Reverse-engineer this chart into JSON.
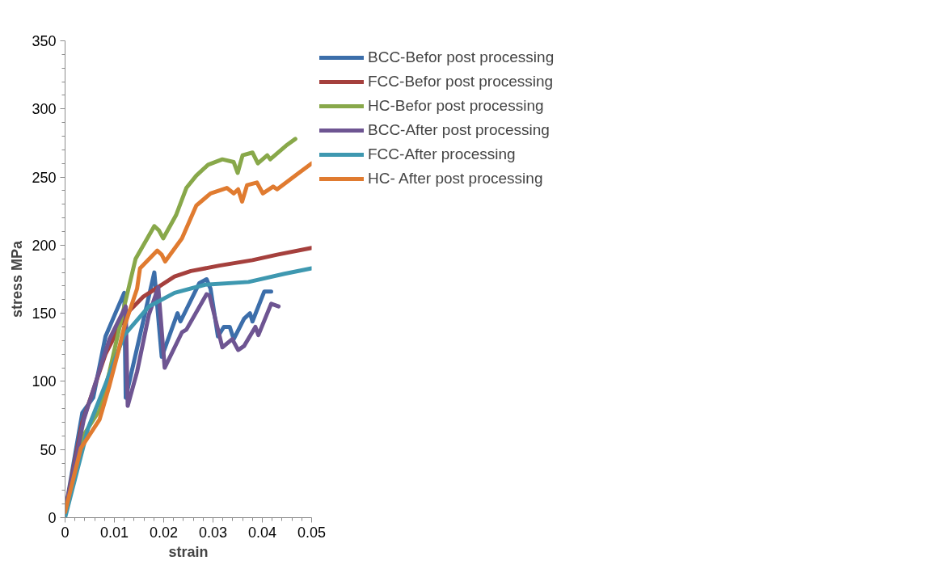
{
  "chart_data": {
    "type": "line",
    "xlabel": "strain",
    "ylabel": "stress MPa",
    "xlim": [
      0,
      0.05
    ],
    "xticks": [
      0,
      0.01,
      0.02,
      0.03,
      0.04,
      0.05
    ],
    "ylim": [
      0,
      350
    ],
    "yticks": [
      0,
      50,
      100,
      150,
      200,
      250,
      300,
      350
    ],
    "grid": false,
    "legend": "right",
    "marker": "none",
    "line_style": "solid",
    "series": [
      {
        "name": "BCC-Befor post processing",
        "color": "#3c6eaa",
        "x": [
          0,
          0.0035,
          0.0057,
          0.0082,
          0.0102,
          0.012,
          0.0123,
          0.0181,
          0.0196,
          0.0228,
          0.0234,
          0.0272,
          0.0287,
          0.0295,
          0.031,
          0.0322,
          0.0334,
          0.0342,
          0.0363,
          0.0375,
          0.038,
          0.0404,
          0.0418
        ],
        "values": [
          4,
          77,
          88,
          133,
          150,
          165,
          88,
          180,
          118,
          150,
          144,
          172,
          175,
          168,
          133,
          140,
          140,
          131,
          146,
          150,
          144,
          166,
          166
        ]
      },
      {
        "name": "FCC-Befor post processing",
        "color": "#a5403d",
        "x": [
          0,
          0.0035,
          0.0082,
          0.0123,
          0.0158,
          0.0222,
          0.0255,
          0.0313,
          0.038,
          0.043,
          0.05
        ],
        "values": [
          4,
          70,
          120,
          149,
          162,
          177,
          181,
          185,
          189,
          193,
          198
        ]
      },
      {
        "name": "HC-Befor post processing",
        "color": "#88a84a",
        "x": [
          0,
          0.004,
          0.007,
          0.009,
          0.012,
          0.0143,
          0.0181,
          0.019,
          0.0199,
          0.0225,
          0.0246,
          0.0266,
          0.029,
          0.0319,
          0.0342,
          0.035,
          0.036,
          0.038,
          0.0391,
          0.041,
          0.0416,
          0.0448,
          0.0467
        ],
        "values": [
          4,
          62,
          79,
          107,
          155,
          190,
          214,
          211,
          205,
          222,
          242,
          251,
          259,
          263,
          261,
          253,
          266,
          268,
          260,
          266,
          263,
          273,
          278
        ]
      },
      {
        "name": "BCC-After post processing",
        "color": "#6e5592",
        "x": [
          0,
          0.0038,
          0.009,
          0.0123,
          0.0127,
          0.0146,
          0.017,
          0.0189,
          0.0202,
          0.0237,
          0.0246,
          0.0287,
          0.0293,
          0.0319,
          0.0339,
          0.0351,
          0.0363,
          0.0386,
          0.0392,
          0.0418,
          0.0433
        ],
        "values": [
          4,
          72,
          131,
          155,
          82,
          107,
          149,
          169,
          110,
          136,
          138,
          164,
          163,
          125,
          131,
          123,
          126,
          140,
          134,
          157,
          155
        ]
      },
      {
        "name": "FCC-After processing",
        "color": "#3e98b0",
        "x": [
          0,
          0.0047,
          0.0082,
          0.012,
          0.017,
          0.0222,
          0.0284,
          0.0372,
          0.0445,
          0.05
        ],
        "values": [
          0,
          66,
          98,
          134,
          155,
          165,
          171,
          173,
          179,
          183
        ]
      },
      {
        "name": "HC- After post processing",
        "color": "#e07b30",
        "x": [
          0,
          0.0032,
          0.007,
          0.009,
          0.0108,
          0.012,
          0.0146,
          0.0152,
          0.0187,
          0.0196,
          0.0203,
          0.0237,
          0.0266,
          0.0295,
          0.0328,
          0.0342,
          0.0351,
          0.0359,
          0.0369,
          0.0389,
          0.0401,
          0.0422,
          0.043,
          0.0474,
          0.05
        ],
        "values": [
          4,
          51,
          72,
          97,
          122,
          140,
          168,
          183,
          196,
          193,
          188,
          205,
          229,
          238,
          242,
          238,
          241,
          232,
          244,
          246,
          238,
          243,
          241,
          253,
          260
        ]
      }
    ]
  }
}
